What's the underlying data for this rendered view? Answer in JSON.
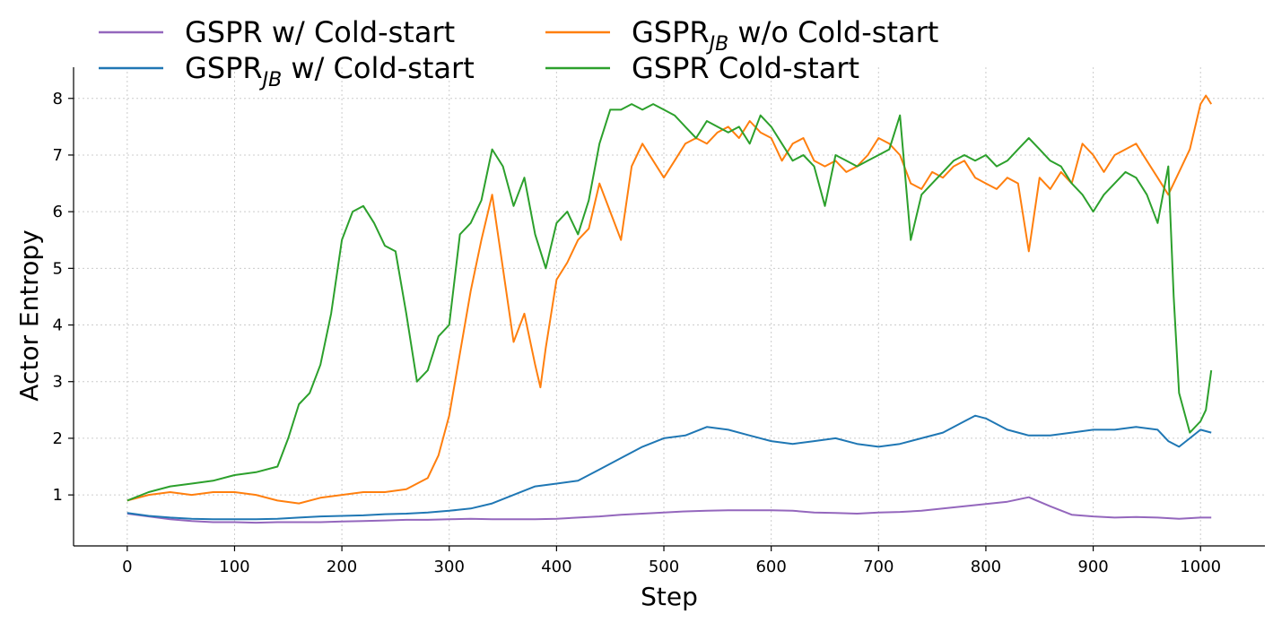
{
  "chart_data": {
    "type": "line",
    "xlabel": "Step",
    "ylabel": "Actor Entropy",
    "xlim": [
      -50,
      1060
    ],
    "ylim": [
      0.1,
      8.55
    ],
    "x_ticks": [
      0,
      100,
      200,
      300,
      400,
      500,
      600,
      700,
      800,
      900,
      1000
    ],
    "y_ticks": [
      1,
      2,
      3,
      4,
      5,
      6,
      7,
      8
    ],
    "grid": true,
    "legend_position": "top",
    "series": [
      {
        "name": "GSPR w/ Cold-start",
        "legend_base": "GSPR",
        "legend_sub": "",
        "legend_suffix": " w/ Cold-start",
        "color": "#9467bd",
        "x": [
          0,
          20,
          40,
          60,
          80,
          100,
          120,
          140,
          160,
          180,
          200,
          220,
          240,
          260,
          280,
          300,
          320,
          340,
          360,
          380,
          400,
          420,
          440,
          460,
          480,
          500,
          520,
          540,
          560,
          580,
          600,
          620,
          640,
          660,
          680,
          700,
          720,
          740,
          760,
          780,
          800,
          820,
          840,
          860,
          880,
          900,
          920,
          940,
          960,
          980,
          1000,
          1010
        ],
        "y": [
          0.67,
          0.62,
          0.57,
          0.54,
          0.52,
          0.52,
          0.51,
          0.52,
          0.52,
          0.52,
          0.53,
          0.54,
          0.55,
          0.56,
          0.56,
          0.57,
          0.58,
          0.57,
          0.57,
          0.57,
          0.58,
          0.6,
          0.62,
          0.65,
          0.67,
          0.69,
          0.71,
          0.72,
          0.73,
          0.73,
          0.73,
          0.72,
          0.69,
          0.68,
          0.67,
          0.69,
          0.7,
          0.72,
          0.76,
          0.8,
          0.84,
          0.88,
          0.96,
          0.8,
          0.65,
          0.62,
          0.6,
          0.61,
          0.6,
          0.58,
          0.6,
          0.6
        ]
      },
      {
        "name": "GSPR_JB w/ Cold-start",
        "legend_base": "GSPR",
        "legend_sub": "JB",
        "legend_suffix": " w/ Cold-start",
        "color": "#1f77b4",
        "x": [
          0,
          20,
          40,
          60,
          80,
          100,
          120,
          140,
          160,
          180,
          200,
          220,
          240,
          260,
          280,
          300,
          320,
          340,
          360,
          380,
          400,
          420,
          440,
          460,
          480,
          500,
          520,
          540,
          560,
          580,
          600,
          620,
          640,
          660,
          680,
          700,
          720,
          740,
          760,
          780,
          790,
          800,
          820,
          840,
          860,
          880,
          900,
          920,
          940,
          960,
          970,
          980,
          990,
          1000,
          1010
        ],
        "y": [
          0.68,
          0.63,
          0.6,
          0.58,
          0.57,
          0.57,
          0.57,
          0.58,
          0.6,
          0.62,
          0.63,
          0.64,
          0.66,
          0.67,
          0.69,
          0.72,
          0.76,
          0.85,
          1.0,
          1.15,
          1.2,
          1.25,
          1.45,
          1.65,
          1.85,
          2.0,
          2.05,
          2.2,
          2.15,
          2.05,
          1.95,
          1.9,
          1.95,
          2.0,
          1.9,
          1.85,
          1.9,
          2.0,
          2.1,
          2.3,
          2.4,
          2.35,
          2.15,
          2.05,
          2.05,
          2.1,
          2.15,
          2.15,
          2.2,
          2.15,
          1.95,
          1.85,
          2.0,
          2.15,
          2.1
        ]
      },
      {
        "name": "GSPR_JB w/o Cold-start",
        "legend_base": "GSPR",
        "legend_sub": "JB",
        "legend_suffix": " w/o Cold-start",
        "color": "#ff7f0e",
        "x": [
          0,
          20,
          40,
          60,
          80,
          100,
          120,
          140,
          160,
          180,
          200,
          220,
          240,
          260,
          280,
          290,
          300,
          310,
          320,
          330,
          340,
          350,
          360,
          370,
          380,
          385,
          390,
          400,
          410,
          420,
          430,
          440,
          450,
          460,
          470,
          480,
          490,
          500,
          510,
          520,
          530,
          540,
          550,
          560,
          570,
          580,
          590,
          600,
          610,
          620,
          630,
          640,
          650,
          660,
          670,
          680,
          690,
          700,
          710,
          720,
          730,
          740,
          750,
          760,
          770,
          780,
          790,
          800,
          810,
          820,
          830,
          840,
          850,
          860,
          870,
          880,
          890,
          900,
          910,
          920,
          930,
          940,
          950,
          960,
          970,
          980,
          990,
          1000,
          1005,
          1010
        ],
        "y": [
          0.9,
          1.0,
          1.05,
          1.0,
          1.05,
          1.05,
          1.0,
          0.9,
          0.85,
          0.95,
          1.0,
          1.05,
          1.05,
          1.1,
          1.3,
          1.7,
          2.4,
          3.5,
          4.6,
          5.5,
          6.3,
          5.0,
          3.7,
          4.2,
          3.3,
          2.9,
          3.6,
          4.8,
          5.1,
          5.5,
          5.7,
          6.5,
          6.0,
          5.5,
          6.8,
          7.2,
          6.9,
          6.6,
          6.9,
          7.2,
          7.3,
          7.2,
          7.4,
          7.5,
          7.3,
          7.6,
          7.4,
          7.3,
          6.9,
          7.2,
          7.3,
          6.9,
          6.8,
          6.9,
          6.7,
          6.8,
          7.0,
          7.3,
          7.2,
          7.0,
          6.5,
          6.4,
          6.7,
          6.6,
          6.8,
          6.9,
          6.6,
          6.5,
          6.4,
          6.6,
          6.5,
          5.3,
          6.6,
          6.4,
          6.7,
          6.5,
          7.2,
          7.0,
          6.7,
          7.0,
          7.1,
          7.2,
          6.9,
          6.6,
          6.3,
          6.7,
          7.1,
          7.9,
          8.05,
          7.9
        ]
      },
      {
        "name": "GSPR Cold-start",
        "legend_base": "GSPR",
        "legend_sub": "",
        "legend_suffix": " Cold-start",
        "color": "#2ca02c",
        "x": [
          0,
          20,
          40,
          60,
          80,
          100,
          120,
          140,
          150,
          160,
          170,
          180,
          190,
          200,
          210,
          220,
          230,
          240,
          250,
          260,
          270,
          280,
          290,
          300,
          310,
          320,
          330,
          340,
          350,
          360,
          370,
          380,
          390,
          400,
          410,
          420,
          430,
          440,
          450,
          460,
          470,
          480,
          490,
          500,
          510,
          520,
          530,
          540,
          550,
          560,
          570,
          580,
          590,
          600,
          610,
          620,
          630,
          640,
          650,
          660,
          670,
          680,
          690,
          700,
          710,
          720,
          730,
          740,
          750,
          760,
          770,
          780,
          790,
          800,
          810,
          820,
          830,
          840,
          850,
          860,
          870,
          880,
          890,
          900,
          910,
          920,
          930,
          940,
          950,
          960,
          970,
          975,
          980,
          990,
          1000,
          1005,
          1010
        ],
        "y": [
          0.9,
          1.05,
          1.15,
          1.2,
          1.25,
          1.35,
          1.4,
          1.5,
          2.0,
          2.6,
          2.8,
          3.3,
          4.2,
          5.5,
          6.0,
          6.1,
          5.8,
          5.4,
          5.3,
          4.2,
          3.0,
          3.2,
          3.8,
          4.0,
          5.6,
          5.8,
          6.2,
          7.1,
          6.8,
          6.1,
          6.6,
          5.6,
          5.0,
          5.8,
          6.0,
          5.6,
          6.2,
          7.2,
          7.8,
          7.8,
          7.9,
          7.8,
          7.9,
          7.8,
          7.7,
          7.5,
          7.3,
          7.6,
          7.5,
          7.4,
          7.5,
          7.2,
          7.7,
          7.5,
          7.2,
          6.9,
          7.0,
          6.8,
          6.1,
          7.0,
          6.9,
          6.8,
          6.9,
          7.0,
          7.1,
          7.7,
          5.5,
          6.3,
          6.5,
          6.7,
          6.9,
          7.0,
          6.9,
          7.0,
          6.8,
          6.9,
          7.1,
          7.3,
          7.1,
          6.9,
          6.8,
          6.5,
          6.3,
          6.0,
          6.3,
          6.5,
          6.7,
          6.6,
          6.3,
          5.8,
          6.8,
          4.5,
          2.8,
          2.1,
          2.3,
          2.5,
          3.2
        ]
      }
    ]
  }
}
